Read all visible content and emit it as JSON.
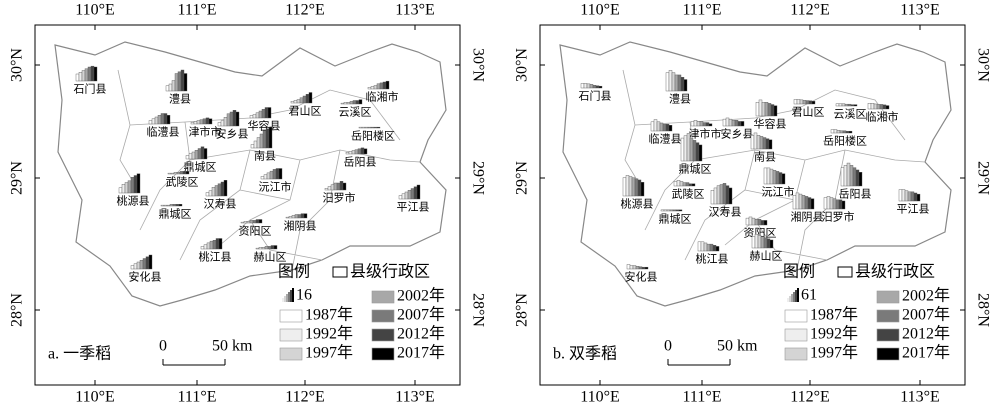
{
  "axes": {
    "top": [
      "110°E",
      "111°E",
      "112°E",
      "113°E"
    ],
    "side": [
      "30°N",
      "29°N",
      "28°N"
    ]
  },
  "years": [
    "1987年",
    "1992年",
    "1997年",
    "2002年",
    "2007年",
    "2012年",
    "2017年"
  ],
  "year_colors": [
    "#ffffff",
    "#eeeeee",
    "#d4d4d4",
    "#a8a8a8",
    "#7a7a7a",
    "#444444",
    "#000000"
  ],
  "panels": [
    {
      "label": "a. 一季稻",
      "legend_title": "图例",
      "legend_region": "县级行政区",
      "scale_value": 16,
      "scale_zero": "0",
      "scale_label": "50 km",
      "counties": [
        {
          "name": "石门县",
          "values": [
            8,
            10,
            12,
            14,
            16,
            17,
            16
          ]
        },
        {
          "name": "澧县",
          "values": [
            6,
            8,
            12,
            20,
            22,
            24,
            20
          ]
        },
        {
          "name": "临澧县",
          "values": [
            4,
            6,
            8,
            10,
            12,
            12,
            10
          ]
        },
        {
          "name": "津市市",
          "values": [
            2,
            3,
            4,
            5,
            6,
            7,
            6
          ]
        },
        {
          "name": "安乡县",
          "values": [
            4,
            6,
            10,
            14,
            16,
            18,
            16
          ]
        },
        {
          "name": "华容县",
          "values": [
            3,
            4,
            6,
            8,
            10,
            12,
            12
          ]
        },
        {
          "name": "君山区",
          "values": [
            2,
            3,
            4,
            6,
            8,
            10,
            12
          ]
        },
        {
          "name": "云溪区",
          "values": [
            1,
            2,
            2,
            3,
            4,
            4,
            5
          ]
        },
        {
          "name": "临湘市",
          "values": [
            2,
            3,
            4,
            6,
            7,
            8,
            9
          ]
        },
        {
          "name": "岳阳楼区",
          "values": [
            1,
            1,
            1,
            1,
            1,
            1,
            1
          ]
        },
        {
          "name": "南县",
          "values": [
            4,
            8,
            12,
            16,
            20,
            22,
            24
          ]
        },
        {
          "name": "鼎城区",
          "values": [
            4,
            6,
            8,
            10,
            12,
            14,
            12
          ]
        },
        {
          "name": "岳阳县",
          "values": [
            2,
            3,
            4,
            5,
            6,
            7,
            6
          ]
        },
        {
          "name": "武陵区",
          "values": [
            1,
            1,
            2,
            2,
            3,
            3,
            3
          ]
        },
        {
          "name": "桃源县",
          "values": [
            6,
            10,
            12,
            14,
            18,
            20,
            22
          ]
        },
        {
          "name": "沅江市",
          "values": [
            3,
            5,
            7,
            9,
            11,
            12,
            12
          ]
        },
        {
          "name": "汨罗市",
          "values": [
            2,
            4,
            6,
            8,
            8,
            10,
            8
          ]
        },
        {
          "name": "汉寿县",
          "values": [
            4,
            6,
            10,
            12,
            14,
            16,
            18
          ]
        },
        {
          "name": "平江县",
          "values": [
            4,
            6,
            8,
            10,
            12,
            14,
            16
          ]
        },
        {
          "name": "鼎城区",
          "values": [
            1,
            1,
            1,
            2,
            2,
            2,
            2
          ]
        },
        {
          "name": "资阳区",
          "values": [
            1,
            2,
            2,
            3,
            3,
            4,
            4
          ]
        },
        {
          "name": "湘阴县",
          "values": [
            1,
            2,
            3,
            4,
            4,
            5,
            5
          ]
        },
        {
          "name": "桃江县",
          "values": [
            3,
            5,
            7,
            9,
            10,
            12,
            12
          ]
        },
        {
          "name": "赫山区",
          "values": [
            1,
            2,
            2,
            3,
            3,
            4,
            4
          ]
        },
        {
          "name": "安化县",
          "values": [
            4,
            6,
            8,
            10,
            12,
            14,
            16
          ]
        }
      ]
    },
    {
      "label": "b. 双季稻",
      "legend_title": "图例",
      "legend_region": "县级行政区",
      "scale_value": 61,
      "scale_zero": "0",
      "scale_label": "50 km",
      "counties": [
        {
          "name": "石门县",
          "values": [
            20,
            20,
            18,
            16,
            12,
            10,
            8
          ]
        },
        {
          "name": "澧县",
          "values": [
            80,
            90,
            80,
            70,
            70,
            60,
            50
          ]
        },
        {
          "name": "临澧县",
          "values": [
            40,
            50,
            40,
            35,
            30,
            30,
            25
          ]
        },
        {
          "name": "津市市",
          "values": [
            20,
            25,
            20,
            20,
            15,
            15,
            10
          ]
        },
        {
          "name": "安乡县",
          "values": [
            30,
            35,
            30,
            25,
            25,
            20,
            20
          ]
        },
        {
          "name": "华容县",
          "values": [
            60,
            70,
            60,
            60,
            55,
            50,
            45
          ]
        },
        {
          "name": "君山区",
          "values": [
            20,
            20,
            18,
            16,
            15,
            14,
            12
          ]
        },
        {
          "name": "云溪区",
          "values": [
            10,
            10,
            10,
            8,
            8,
            6,
            6
          ]
        },
        {
          "name": "临湘市",
          "values": [
            25,
            25,
            22,
            20,
            20,
            18,
            15
          ]
        },
        {
          "name": "岳阳楼区",
          "values": [
            15,
            15,
            12,
            10,
            10,
            8,
            8
          ]
        },
        {
          "name": "南县",
          "values": [
            60,
            70,
            60,
            55,
            50,
            45,
            40
          ]
        },
        {
          "name": "鼎城区",
          "values": [
            100,
            110,
            120,
            100,
            90,
            80,
            70
          ]
        },
        {
          "name": "岳阳县",
          "values": [
            80,
            90,
            100,
            90,
            80,
            70,
            60
          ]
        },
        {
          "name": "武陵区",
          "values": [
            20,
            25,
            20,
            15,
            15,
            10,
            10
          ]
        },
        {
          "name": "桃源县",
          "values": [
            80,
            90,
            85,
            80,
            75,
            70,
            60
          ]
        },
        {
          "name": "沅江市",
          "values": [
            70,
            70,
            65,
            60,
            55,
            50,
            45
          ]
        },
        {
          "name": "汨罗市",
          "values": [
            50,
            55,
            50,
            45,
            40,
            40,
            35
          ]
        },
        {
          "name": "汉寿县",
          "values": [
            60,
            70,
            80,
            85,
            90,
            80,
            70
          ]
        },
        {
          "name": "平江县",
          "values": [
            50,
            50,
            45,
            40,
            40,
            35,
            30
          ]
        },
        {
          "name": "鼎城区",
          "values": [
            5,
            5,
            5,
            5,
            5,
            5,
            5
          ]
        },
        {
          "name": "资阳区",
          "values": [
            30,
            35,
            30,
            25,
            25,
            20,
            20
          ]
        },
        {
          "name": "湘阴县",
          "values": [
            60,
            70,
            65,
            60,
            55,
            50,
            45
          ]
        },
        {
          "name": "桃江县",
          "values": [
            40,
            40,
            35,
            30,
            30,
            25,
            20
          ]
        },
        {
          "name": "赫山区",
          "values": [
            50,
            60,
            55,
            50,
            45,
            40,
            35
          ]
        },
        {
          "name": "安化县",
          "values": [
            20,
            15,
            15,
            12,
            10,
            8,
            8
          ]
        }
      ]
    }
  ]
}
